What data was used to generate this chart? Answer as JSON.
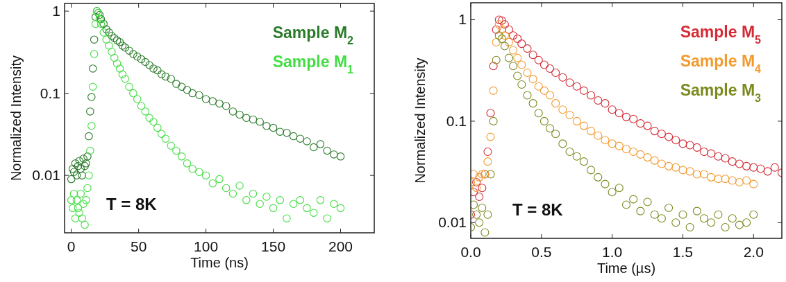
{
  "chart_data": [
    {
      "type": "scatter",
      "xlabel": "Time (ns)",
      "ylabel": "Normalized  Intensity",
      "log": "y",
      "xlim": [
        -5,
        225
      ],
      "xticks": [
        0,
        50,
        100,
        150,
        200
      ],
      "ylim": [
        0.002,
        1.24
      ],
      "yticks": [
        0.01,
        0.1,
        1
      ],
      "legend": "top right",
      "marker": "circle",
      "annotations": [
        "T = 8K"
      ],
      "series": [
        {
          "name": "Sample M$_{2}$",
          "color": "#2a7a2a",
          "x": [
            0,
            1,
            2,
            3,
            4,
            5,
            6,
            7,
            8,
            9,
            10,
            11,
            12,
            13,
            14,
            15,
            16,
            17,
            18,
            19,
            20,
            21,
            22,
            24,
            26,
            28,
            30,
            32,
            34,
            36,
            38,
            40,
            43,
            46,
            49,
            52,
            55,
            58,
            61,
            64,
            67,
            70,
            74,
            78,
            82,
            86,
            90,
            95,
            100,
            105,
            110,
            115,
            120,
            125,
            130,
            135,
            140,
            145,
            150,
            155,
            160,
            165,
            170,
            175,
            180,
            185,
            190,
            195,
            200
          ],
          "values": [
            0.009,
            0.012,
            0.011,
            0.014,
            0.01,
            0.013,
            0.015,
            0.012,
            0.01,
            0.016,
            0.013,
            0.014,
            0.017,
            0.03,
            0.06,
            0.09,
            0.2,
            0.45,
            0.85,
            1,
            0.95,
            0.9,
            0.8,
            0.7,
            0.6,
            0.55,
            0.5,
            0.47,
            0.44,
            0.42,
            0.38,
            0.36,
            0.33,
            0.3,
            0.28,
            0.26,
            0.24,
            0.22,
            0.2,
            0.19,
            0.17,
            0.16,
            0.15,
            0.13,
            0.12,
            0.11,
            0.1,
            0.095,
            0.085,
            0.08,
            0.075,
            0.07,
            0.06,
            0.055,
            0.05,
            0.048,
            0.045,
            0.04,
            0.038,
            0.034,
            0.033,
            0.03,
            0.028,
            0.026,
            0.022,
            0.024,
            0.02,
            0.018,
            0.017
          ]
        },
        {
          "name": "Sample M$_{1}$",
          "color": "#44dd44",
          "x": [
            0,
            1,
            2,
            3,
            4,
            5,
            6,
            7,
            8,
            9,
            10,
            11,
            12,
            13,
            14,
            15,
            16,
            17,
            18,
            19,
            20,
            21,
            22,
            24,
            26,
            28,
            30,
            32,
            34,
            36,
            38,
            40,
            43,
            46,
            49,
            52,
            55,
            58,
            61,
            64,
            67,
            70,
            74,
            78,
            82,
            86,
            90,
            95,
            100,
            105,
            110,
            115,
            120,
            125,
            130,
            135,
            140,
            145,
            150,
            155,
            160,
            165,
            170,
            175,
            180,
            185,
            190,
            195,
            200
          ],
          "values": [
            0.005,
            0.004,
            0.006,
            0.003,
            0.005,
            0.004,
            0.0035,
            0.006,
            0.003,
            0.0045,
            0.0025,
            0.005,
            0.007,
            0.01,
            0.02,
            0.04,
            0.12,
            0.3,
            0.7,
            1,
            0.95,
            0.8,
            0.7,
            0.55,
            0.45,
            0.38,
            0.32,
            0.27,
            0.23,
            0.2,
            0.17,
            0.15,
            0.12,
            0.1,
            0.085,
            0.07,
            0.06,
            0.05,
            0.045,
            0.038,
            0.032,
            0.028,
            0.023,
            0.02,
            0.017,
            0.014,
            0.012,
            0.011,
            0.01,
            0.008,
            0.009,
            0.007,
            0.006,
            0.0075,
            0.005,
            0.006,
            0.0045,
            0.0055,
            0.004,
            0.005,
            0.003,
            0.0045,
            0.005,
            0.004,
            0.0035,
            0.005,
            0.003,
            0.0045,
            0.004
          ]
        }
      ]
    },
    {
      "type": "scatter",
      "xlabel": "Time (µs)",
      "ylabel": "Normalized Intensity",
      "log": "y",
      "xlim": [
        0,
        2.2
      ],
      "xticks": [
        {
          "value": 0,
          "label": "0.0"
        },
        0.5,
        {
          "value": 1,
          "label": "1.0"
        },
        1.5,
        {
          "value": 2,
          "label": "2.0"
        }
      ],
      "ylim": [
        0.007,
        1.47
      ],
      "yticks": [
        0.01,
        0.1,
        1
      ],
      "legend": "top right",
      "marker": "circle",
      "annotations": [
        "T = 8K"
      ],
      "series": [
        {
          "name": "Sample M$_{5}$",
          "color": "#d42b35",
          "x": [
            0,
            0.02,
            0.04,
            0.06,
            0.08,
            0.1,
            0.12,
            0.14,
            0.16,
            0.18,
            0.2,
            0.22,
            0.24,
            0.27,
            0.3,
            0.33,
            0.36,
            0.4,
            0.44,
            0.48,
            0.52,
            0.56,
            0.6,
            0.65,
            0.7,
            0.75,
            0.8,
            0.85,
            0.9,
            0.95,
            1.0,
            1.05,
            1.1,
            1.15,
            1.2,
            1.25,
            1.3,
            1.35,
            1.4,
            1.45,
            1.5,
            1.55,
            1.6,
            1.65,
            1.7,
            1.75,
            1.8,
            1.85,
            1.9,
            1.95,
            2.0,
            2.05,
            2.1,
            2.15,
            2.2
          ],
          "values": [
            0.012,
            0.02,
            0.025,
            0.018,
            0.022,
            0.03,
            0.05,
            0.12,
            0.35,
            0.8,
            1,
            0.98,
            0.9,
            0.8,
            0.7,
            0.65,
            0.58,
            0.52,
            0.45,
            0.4,
            0.36,
            0.33,
            0.3,
            0.27,
            0.24,
            0.22,
            0.2,
            0.18,
            0.16,
            0.15,
            0.13,
            0.12,
            0.11,
            0.105,
            0.095,
            0.09,
            0.08,
            0.075,
            0.07,
            0.065,
            0.06,
            0.058,
            0.055,
            0.05,
            0.048,
            0.045,
            0.043,
            0.04,
            0.038,
            0.036,
            0.035,
            0.034,
            0.032,
            0.035,
            0.031
          ]
        },
        {
          "name": "Sample M$_{4}$",
          "color": "#f39a2e",
          "x": [
            0,
            0.02,
            0.04,
            0.06,
            0.08,
            0.1,
            0.12,
            0.14,
            0.16,
            0.18,
            0.2,
            0.22,
            0.24,
            0.27,
            0.3,
            0.33,
            0.36,
            0.4,
            0.44,
            0.48,
            0.52,
            0.56,
            0.6,
            0.65,
            0.7,
            0.75,
            0.8,
            0.85,
            0.9,
            0.95,
            1.0,
            1.05,
            1.1,
            1.15,
            1.2,
            1.25,
            1.3,
            1.35,
            1.4,
            1.45,
            1.5,
            1.55,
            1.6,
            1.65,
            1.7,
            1.75,
            1.8,
            1.85,
            1.9,
            1.95,
            2.0
          ],
          "values": [
            0.025,
            0.03,
            0.022,
            0.028,
            0.03,
            0.03,
            0.04,
            0.07,
            0.2,
            0.6,
            0.9,
            0.8,
            0.7,
            0.6,
            0.5,
            0.42,
            0.36,
            0.3,
            0.26,
            0.22,
            0.2,
            0.18,
            0.15,
            0.13,
            0.115,
            0.1,
            0.09,
            0.08,
            0.072,
            0.065,
            0.06,
            0.057,
            0.053,
            0.05,
            0.047,
            0.044,
            0.041,
            0.038,
            0.036,
            0.035,
            0.033,
            0.032,
            0.03,
            0.03,
            0.028,
            0.027,
            0.027,
            0.026,
            0.025,
            0.026,
            0.024
          ]
        },
        {
          "name": "Sample M$_{3}$",
          "color": "#7b8a1c",
          "x": [
            0,
            0.02,
            0.04,
            0.06,
            0.08,
            0.1,
            0.12,
            0.14,
            0.16,
            0.18,
            0.2,
            0.22,
            0.24,
            0.27,
            0.3,
            0.33,
            0.36,
            0.4,
            0.44,
            0.48,
            0.52,
            0.56,
            0.6,
            0.65,
            0.7,
            0.75,
            0.8,
            0.85,
            0.9,
            0.95,
            1.0,
            1.05,
            1.1,
            1.15,
            1.2,
            1.25,
            1.3,
            1.35,
            1.4,
            1.45,
            1.5,
            1.55,
            1.6,
            1.65,
            1.7,
            1.75,
            1.8,
            1.85,
            1.9,
            1.95,
            2.0
          ],
          "values": [
            0.009,
            0.015,
            0.012,
            0.01,
            0.014,
            0.008,
            0.012,
            0.03,
            0.1,
            0.4,
            0.7,
            0.65,
            0.55,
            0.42,
            0.35,
            0.28,
            0.23,
            0.18,
            0.15,
            0.12,
            0.1,
            0.085,
            0.075,
            0.06,
            0.05,
            0.045,
            0.04,
            0.033,
            0.028,
            0.024,
            0.02,
            0.022,
            0.015,
            0.017,
            0.013,
            0.016,
            0.012,
            0.011,
            0.014,
            0.01,
            0.012,
            0.009,
            0.013,
            0.011,
            0.01,
            0.012,
            0.009,
            0.011,
            0.0095,
            0.01,
            0.012
          ]
        }
      ]
    }
  ]
}
